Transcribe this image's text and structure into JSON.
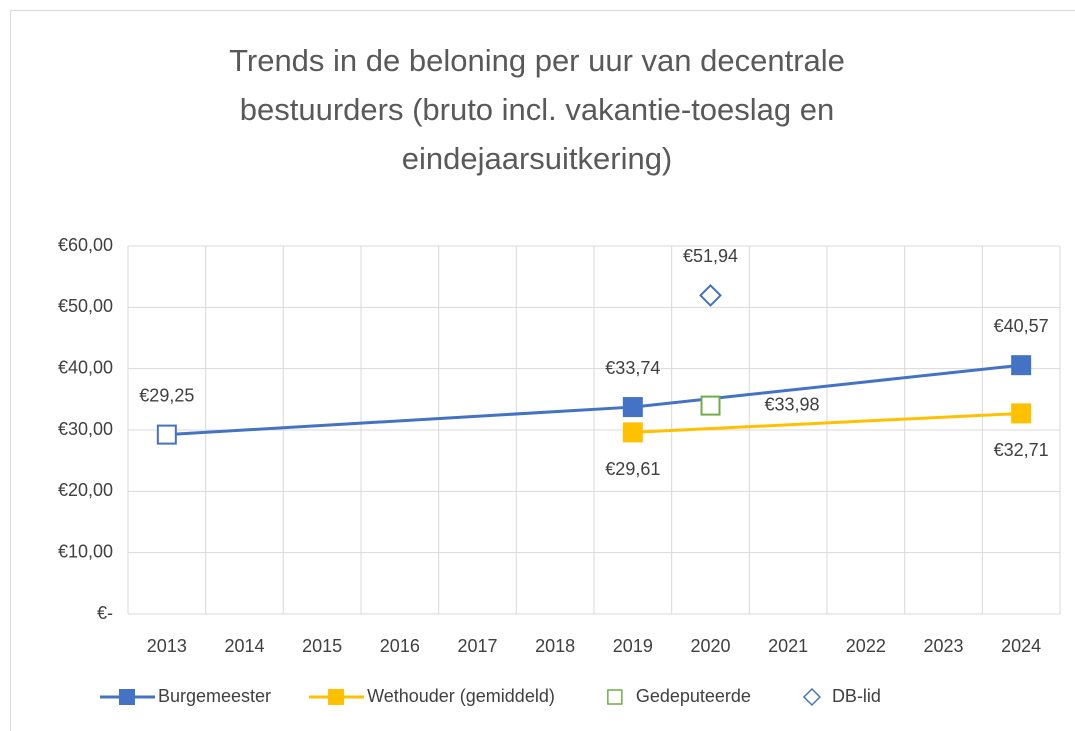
{
  "chart_data": {
    "type": "line",
    "title": "Trends in de beloning per uur van decentrale bestuurders (bruto incl. vakantie-toeslag en eindejaarsuitkering)",
    "xlim": [
      2012.5,
      2024.5
    ],
    "xticks": [
      2013,
      2014,
      2015,
      2016,
      2017,
      2018,
      2019,
      2020,
      2021,
      2022,
      2023,
      2024
    ],
    "ylim": [
      0,
      60
    ],
    "yticks": [
      {
        "value": 0,
        "label": "€-"
      },
      {
        "value": 10,
        "label": "€10,00"
      },
      {
        "value": 20,
        "label": "€20,00"
      },
      {
        "value": 30,
        "label": "€30,00"
      },
      {
        "value": 40,
        "label": "€40,00"
      },
      {
        "value": 50,
        "label": "€50,00"
      },
      {
        "value": 60,
        "label": "€60,00"
      }
    ],
    "grid": true,
    "legend": "bottom",
    "series": [
      {
        "name": "Burgemeester",
        "color": "#4472c4",
        "line": true,
        "marker": "square",
        "marker_fill": [
          false,
          true,
          true
        ],
        "x": [
          2013,
          2019,
          2024
        ],
        "values": [
          29.25,
          33.74,
          40.57
        ],
        "value_labels": [
          "€29,25",
          "€33,74",
          "€40,57"
        ]
      },
      {
        "name": "Wethouder (gemiddeld)",
        "color": "#ffc000",
        "line": true,
        "marker": "square",
        "marker_fill": [
          true,
          true
        ],
        "x": [
          2019,
          2024
        ],
        "values": [
          29.61,
          32.71
        ],
        "value_labels": [
          "€29,61",
          "€32,71"
        ]
      },
      {
        "name": "Gedeputeerde",
        "color": "#70ad47",
        "line": false,
        "marker": "square",
        "marker_fill": [
          false
        ],
        "x": [
          2020
        ],
        "values": [
          33.98
        ],
        "value_labels": [
          "€33,98"
        ]
      },
      {
        "name": "DB-lid",
        "color": "#4472c4",
        "line": false,
        "marker": "diamond",
        "marker_fill": [
          false
        ],
        "x": [
          2020
        ],
        "values": [
          51.94
        ],
        "value_labels": [
          "€51,94"
        ]
      }
    ]
  }
}
